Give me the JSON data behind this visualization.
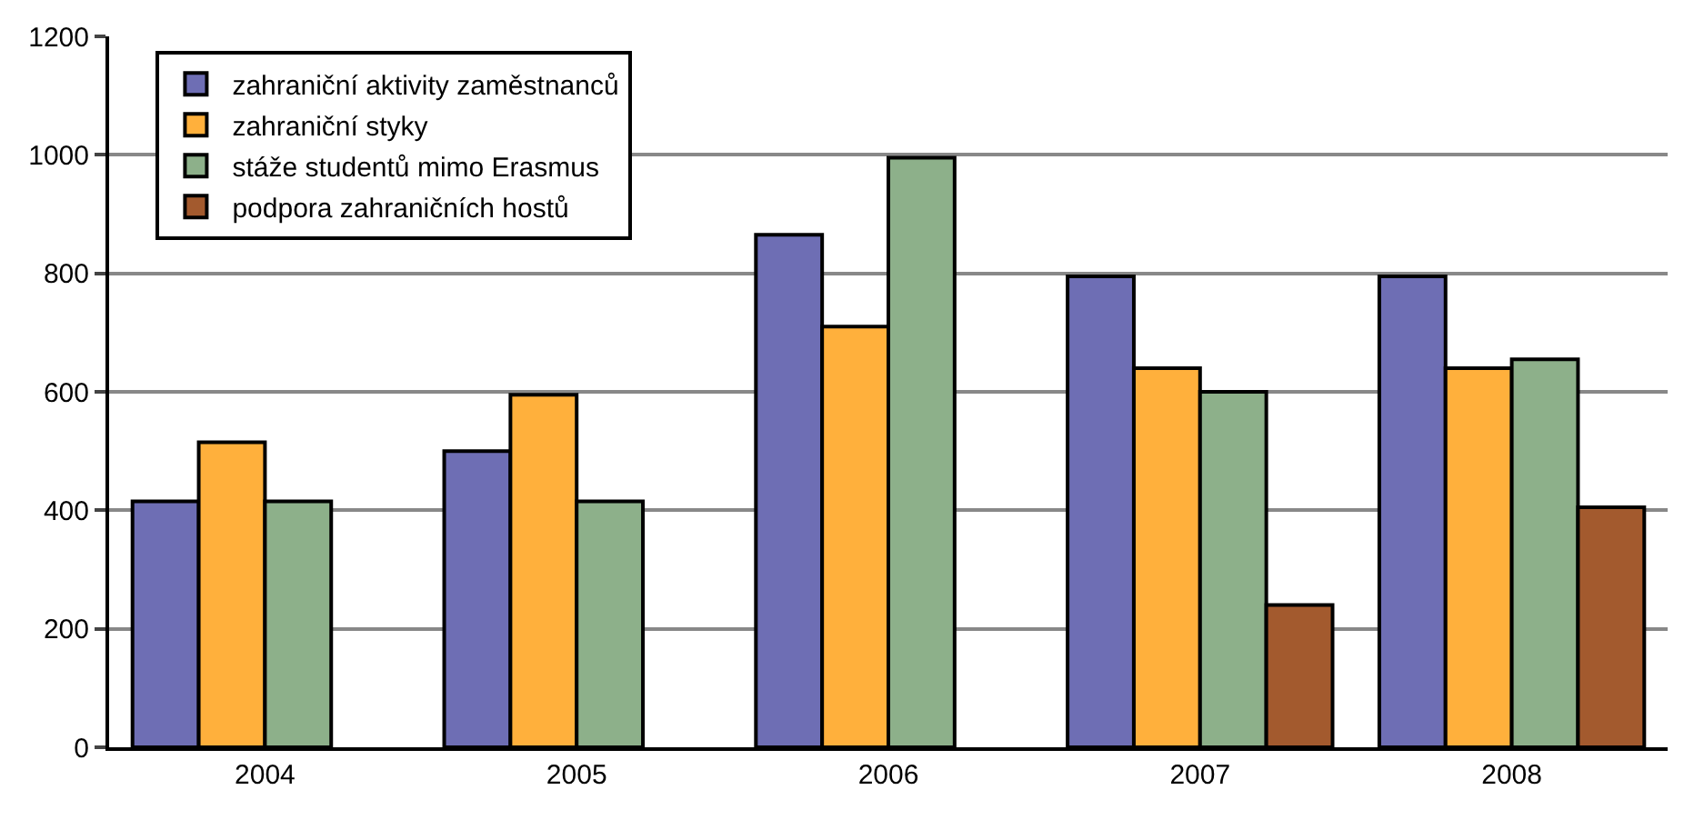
{
  "chart_data": {
    "type": "bar",
    "categories": [
      "2004",
      "2005",
      "2006",
      "2007",
      "2008"
    ],
    "series": [
      {
        "name": "zahraniční aktivity zaměstnanců",
        "color": "#6e6eb4",
        "values": [
          415,
          500,
          865,
          795,
          795
        ]
      },
      {
        "name": "zahraniční styky",
        "color": "#ffb03c",
        "values": [
          515,
          595,
          710,
          640,
          640
        ]
      },
      {
        "name": "stáže studentů mimo Erasmus",
        "color": "#8db08a",
        "values": [
          415,
          415,
          995,
          600,
          655
        ]
      },
      {
        "name": "podpora zahraničních hostů",
        "color": "#a35a2e",
        "values": [
          null,
          null,
          null,
          240,
          405
        ]
      }
    ],
    "ylim": [
      0,
      1200
    ],
    "yticks": [
      0,
      200,
      400,
      600,
      800,
      1000,
      1200
    ],
    "grid": "y",
    "legend": "top left"
  }
}
